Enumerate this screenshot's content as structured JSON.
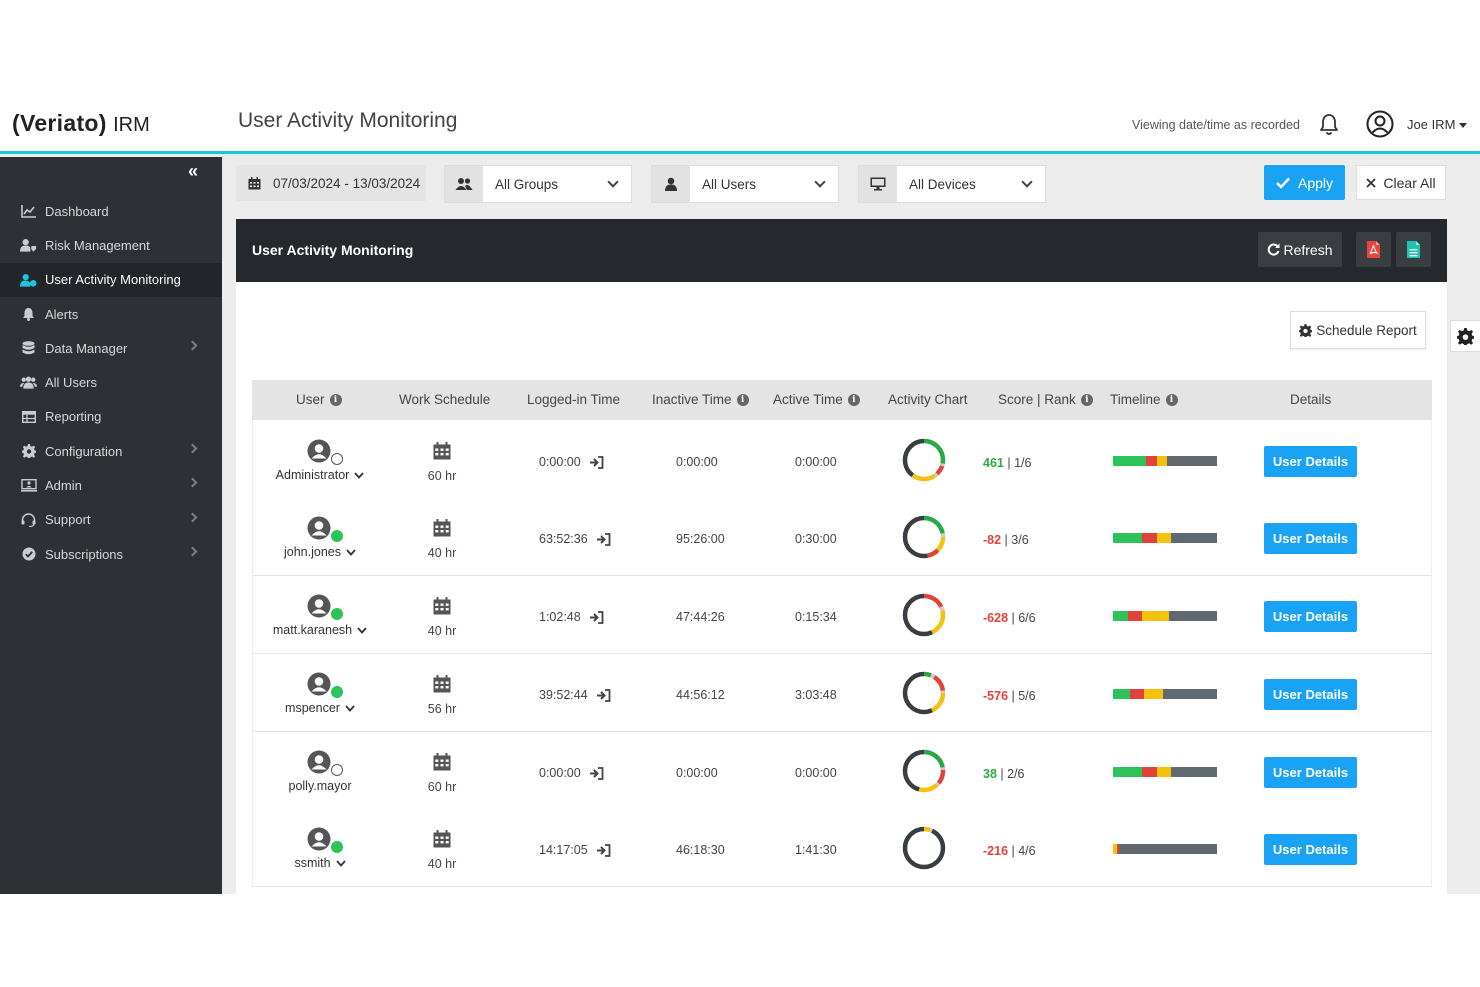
{
  "header": {
    "logo_brand": "(Veriato)",
    "logo_product": "IRM",
    "page_title": "User Activity Monitoring",
    "viewing_text": "Viewing date/time as recorded",
    "user_name": "Joe IRM"
  },
  "sidebar": {
    "items": [
      {
        "label": "Dashboard",
        "icon": "chart-line-icon",
        "has_submenu": false
      },
      {
        "label": "Risk Management",
        "icon": "users-shield-icon",
        "has_submenu": false
      },
      {
        "label": "User Activity Monitoring",
        "icon": "user-activity-icon",
        "has_submenu": false,
        "active": true
      },
      {
        "label": "Alerts",
        "icon": "bell-icon",
        "has_submenu": false
      },
      {
        "label": "Data Manager",
        "icon": "database-icon",
        "has_submenu": true
      },
      {
        "label": "All Users",
        "icon": "users-icon",
        "has_submenu": false
      },
      {
        "label": "Reporting",
        "icon": "table-icon",
        "has_submenu": false
      },
      {
        "label": "Configuration",
        "icon": "gear-icon",
        "has_submenu": true
      },
      {
        "label": "Admin",
        "icon": "admin-icon",
        "has_submenu": true
      },
      {
        "label": "Support",
        "icon": "support-icon",
        "has_submenu": true
      },
      {
        "label": "Subscriptions",
        "icon": "check-circle-icon",
        "has_submenu": true
      }
    ]
  },
  "filters": {
    "date_range": "07/03/2024 - 13/03/2024",
    "groups": "All Groups",
    "users": "All Users",
    "devices": "All Devices",
    "apply_label": "Apply",
    "clear_label": "Clear All"
  },
  "panel": {
    "title": "User Activity Monitoring",
    "refresh_label": "Refresh",
    "schedule_label": "Schedule Report"
  },
  "table": {
    "columns": {
      "user": "User",
      "work_schedule": "Work Schedule",
      "logged_in": "Logged-in Time",
      "inactive": "Inactive Time",
      "active": "Active Time",
      "activity_chart": "Activity Chart",
      "score_rank": "Score | Rank",
      "timeline": "Timeline",
      "details": "Details"
    },
    "details_label": "User Details",
    "rows": [
      {
        "user": "Administrator",
        "online": false,
        "dropdown": true,
        "schedule": "60 hr",
        "logged_in": "0:00:00",
        "inactive": "0:00:00",
        "active": "0:00:00",
        "score": "461",
        "score_positive": true,
        "rank": "1/6",
        "donut": [
          [
            "#2aa845",
            0.28
          ],
          [
            "#cccccc",
            0.02
          ],
          [
            "#e0433b",
            0.08
          ],
          [
            "#cccccc",
            0.02
          ],
          [
            "#f4c20d",
            0.2
          ],
          [
            "#3a3e43",
            0.4
          ]
        ],
        "timeline": [
          [
            "#2ec25a",
            0.32
          ],
          [
            "#e0433b",
            0.1
          ],
          [
            "#f4c20d",
            0.1
          ],
          [
            "#606870",
            0.48
          ]
        ]
      },
      {
        "user": "john.jones",
        "online": true,
        "dropdown": true,
        "schedule": "40 hr",
        "logged_in": "63:52:36",
        "inactive": "95:26:00",
        "active": "0:30:00",
        "score": "-82",
        "score_positive": false,
        "rank": "3/6",
        "donut": [
          [
            "#2aa845",
            0.22
          ],
          [
            "#cccccc",
            0.03
          ],
          [
            "#f4c20d",
            0.12
          ],
          [
            "#e0433b",
            0.1
          ],
          [
            "#3a3e43",
            0.53
          ]
        ],
        "timeline": [
          [
            "#2ec25a",
            0.28
          ],
          [
            "#e0433b",
            0.14
          ],
          [
            "#f4c20d",
            0.14
          ],
          [
            "#606870",
            0.44
          ]
        ]
      },
      {
        "user": "matt.karanesh",
        "online": true,
        "dropdown": true,
        "schedule": "40 hr",
        "logged_in": "1:02:48",
        "inactive": "47:44:26",
        "active": "0:15:34",
        "score": "-628",
        "score_positive": false,
        "rank": "6/6",
        "donut": [
          [
            "#e0433b",
            0.18
          ],
          [
            "#cccccc",
            0.03
          ],
          [
            "#f4c20d",
            0.22
          ],
          [
            "#3a3e43",
            0.57
          ]
        ],
        "timeline": [
          [
            "#2ec25a",
            0.14
          ],
          [
            "#e0433b",
            0.14
          ],
          [
            "#f4c20d",
            0.26
          ],
          [
            "#606870",
            0.46
          ]
        ]
      },
      {
        "user": "mspencer",
        "online": true,
        "dropdown": true,
        "schedule": "56 hr",
        "logged_in": "39:52:44",
        "inactive": "44:56:12",
        "active": "3:03:48",
        "score": "-576",
        "score_positive": false,
        "rank": "5/6",
        "donut": [
          [
            "#2aa845",
            0.06
          ],
          [
            "#cccccc",
            0.03
          ],
          [
            "#e0433b",
            0.14
          ],
          [
            "#cccccc",
            0.02
          ],
          [
            "#f4c20d",
            0.18
          ],
          [
            "#3a3e43",
            0.57
          ]
        ],
        "timeline": [
          [
            "#2ec25a",
            0.16
          ],
          [
            "#e0433b",
            0.14
          ],
          [
            "#f4c20d",
            0.18
          ],
          [
            "#606870",
            0.52
          ]
        ]
      },
      {
        "user": "polly.mayor",
        "online": false,
        "dropdown": false,
        "schedule": "60 hr",
        "logged_in": "0:00:00",
        "inactive": "0:00:00",
        "active": "0:00:00",
        "score": "38",
        "score_positive": true,
        "rank": "2/6",
        "donut": [
          [
            "#2aa845",
            0.22
          ],
          [
            "#cccccc",
            0.02
          ],
          [
            "#e0433b",
            0.12
          ],
          [
            "#cccccc",
            0.02
          ],
          [
            "#f4c20d",
            0.16
          ],
          [
            "#3a3e43",
            0.46
          ]
        ],
        "timeline": [
          [
            "#2ec25a",
            0.28
          ],
          [
            "#e0433b",
            0.14
          ],
          [
            "#f4c20d",
            0.14
          ],
          [
            "#606870",
            0.44
          ]
        ]
      },
      {
        "user": "ssmith",
        "online": true,
        "dropdown": true,
        "schedule": "40 hr",
        "logged_in": "14:17:05",
        "inactive": "46:18:30",
        "active": "1:41:30",
        "score": "-216",
        "score_positive": false,
        "rank": "4/6",
        "donut": [
          [
            "#f4c20d",
            0.05
          ],
          [
            "#cccccc",
            0.02
          ],
          [
            "#3a3e43",
            0.93
          ]
        ],
        "timeline": [
          [
            "#f4c20d",
            0.04
          ],
          [
            "#e0433b",
            0.02
          ],
          [
            "#606870",
            0.94
          ]
        ]
      }
    ]
  }
}
